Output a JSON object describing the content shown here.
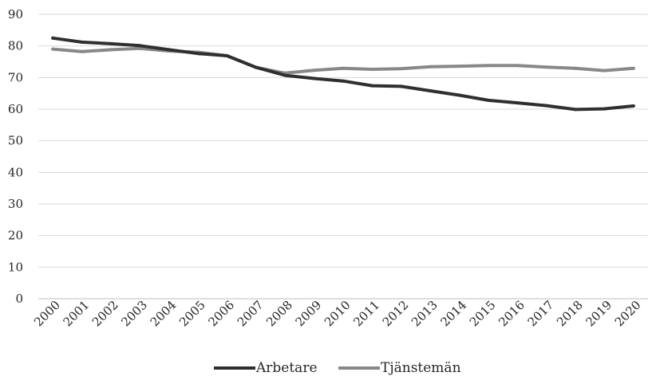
{
  "chart_data": {
    "type": "line",
    "title": "",
    "xlabel": "",
    "ylabel": "",
    "categories": [
      "2000",
      "2001",
      "2002",
      "2003",
      "2004",
      "2005",
      "2006",
      "2007",
      "2008",
      "2009",
      "2010",
      "2011",
      "2012",
      "2013",
      "2014",
      "2015",
      "2016",
      "2017",
      "2018",
      "2019",
      "2020"
    ],
    "ylim": [
      0,
      90
    ],
    "yticks": [
      0,
      10,
      20,
      30,
      40,
      50,
      60,
      70,
      80,
      90
    ],
    "grid": "horizontal",
    "legend_position": "bottom",
    "series": [
      {
        "name": "Arbetare",
        "color": "#2f2f2f",
        "values": [
          82.5,
          81.2,
          80.7,
          80.1,
          78.8,
          77.6,
          76.9,
          73.2,
          70.7,
          69.7,
          68.9,
          67.4,
          67.2,
          65.8,
          64.4,
          62.8,
          62.0,
          61.1,
          59.9,
          60.1,
          61.0
        ]
      },
      {
        "name": "Tjänstemän",
        "color": "#888888",
        "values": [
          79.0,
          78.2,
          78.8,
          79.2,
          78.4,
          78.0,
          76.9,
          73.2,
          71.4,
          72.3,
          72.9,
          72.6,
          72.8,
          73.4,
          73.6,
          73.8,
          73.8,
          73.3,
          72.9,
          72.2,
          72.9
        ]
      }
    ]
  }
}
